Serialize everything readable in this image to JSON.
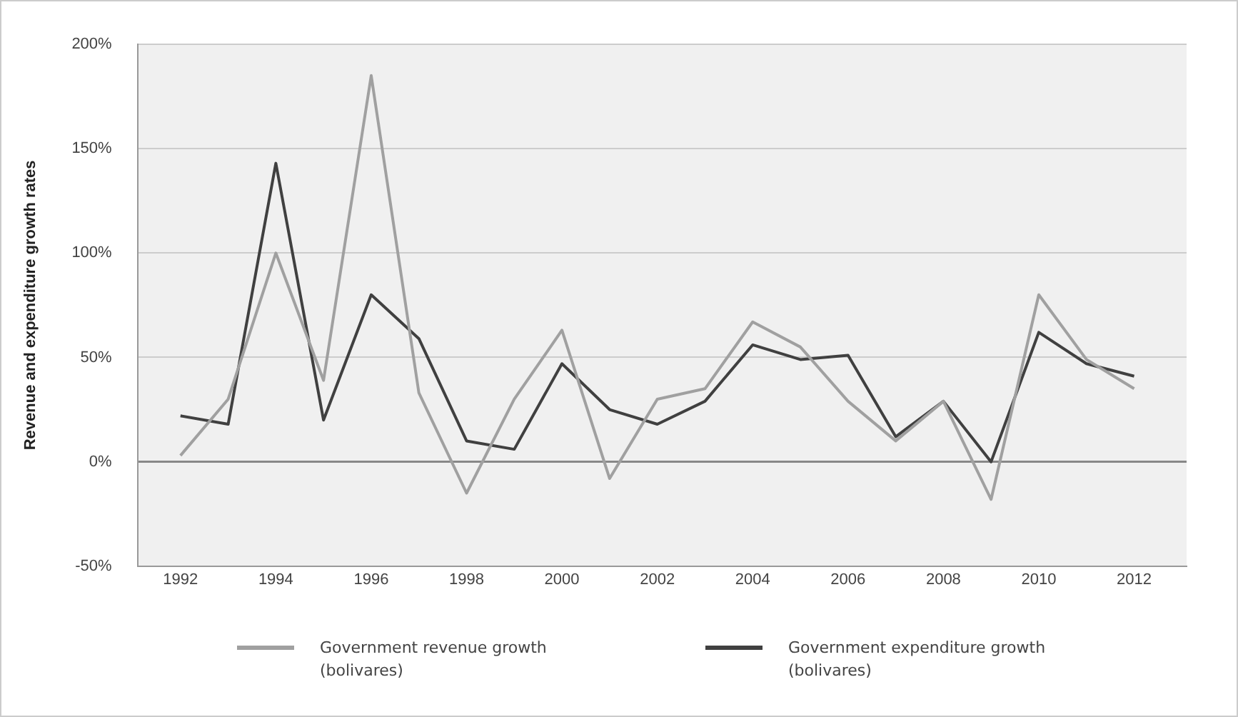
{
  "chart_data": {
    "type": "line",
    "ylabel": "Revenue and expenditure growth rates",
    "x": [
      1992,
      1993,
      1994,
      1995,
      1996,
      1997,
      1998,
      1999,
      2000,
      2001,
      2002,
      2003,
      2004,
      2005,
      2006,
      2007,
      2008,
      2009,
      2010,
      2011,
      2012
    ],
    "series": [
      {
        "name": "Government revenue growth (bolivares)",
        "color": "#a0a0a0",
        "values": [
          3,
          30,
          100,
          39,
          185,
          33,
          -15,
          30,
          63,
          -8,
          30,
          35,
          67,
          55,
          29,
          10,
          29,
          -18,
          80,
          49,
          35
        ]
      },
      {
        "name": "Government expenditure growth (bolivares)",
        "color": "#404040",
        "values": [
          22,
          18,
          143,
          20,
          80,
          59,
          10,
          6,
          47,
          25,
          18,
          29,
          56,
          49,
          51,
          12,
          29,
          0,
          62,
          47,
          41
        ]
      }
    ],
    "xlim": [
      1991.1,
      2013.1
    ],
    "xticks": [
      1992,
      1994,
      1996,
      1998,
      2000,
      2002,
      2004,
      2006,
      2008,
      2010,
      2012
    ],
    "ylim": [
      -50,
      200
    ],
    "yticks": [
      {
        "value": -50,
        "label": "-50%"
      },
      {
        "value": 0,
        "label": "0%"
      },
      {
        "value": 50,
        "label": "50%"
      },
      {
        "value": 100,
        "label": "100%"
      },
      {
        "value": 150,
        "label": "150%"
      },
      {
        "value": 200,
        "label": "200%"
      }
    ],
    "grid": "y",
    "legend": "bottom",
    "marker": "none",
    "line_style": "solid"
  }
}
